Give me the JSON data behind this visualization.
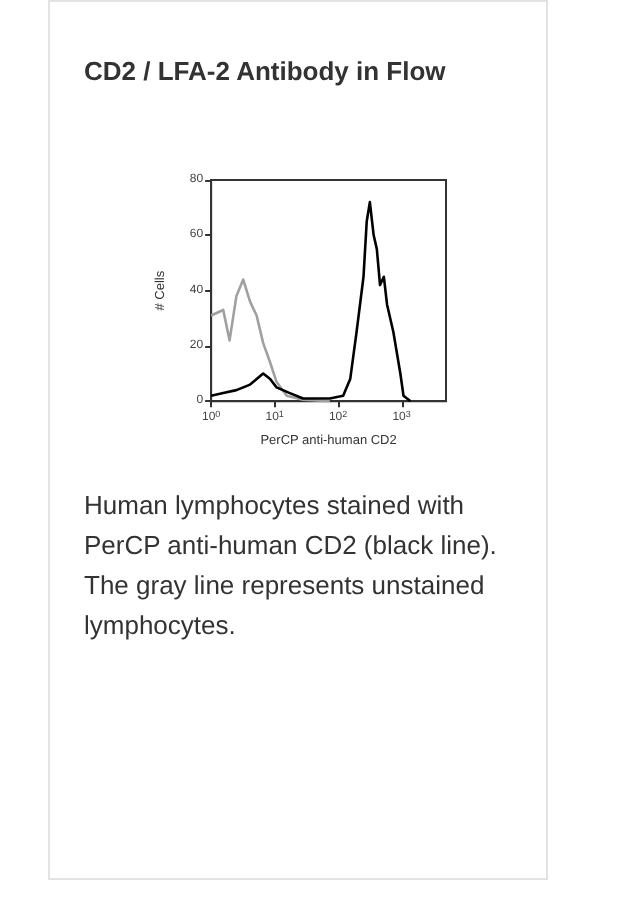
{
  "chart_data": {
    "type": "line",
    "title": "CD2 / LFA-2 Antibody in Flow",
    "xlabel": "PerCP anti-human CD2",
    "ylabel": "# Cells",
    "log": "x",
    "xlim": [
      1,
      5000
    ],
    "xticks": [
      {
        "value": 1,
        "label": "10$^{0}$"
      },
      {
        "value": 10,
        "label": "10$^{1}$"
      },
      {
        "value": 100,
        "label": "10$^{2}$"
      },
      {
        "value": 1000,
        "label": "10$^{3}$"
      }
    ],
    "ylim": [
      0,
      80
    ],
    "yticks": [
      0,
      20,
      40,
      60,
      80
    ],
    "series": [
      {
        "color": "#a0a0a0",
        "x": [
          1,
          1.55,
          1.95,
          2.5,
          3.2,
          4.1,
          5.2,
          6.6,
          8.5,
          10.7,
          15.5,
          28,
          74
        ],
        "values": [
          31,
          33,
          22,
          38,
          44,
          36,
          31,
          21,
          14,
          7,
          2,
          0.5,
          0
        ]
      },
      {
        "color": "#000000",
        "x": [
          1,
          1.55,
          2.5,
          4.1,
          6.6,
          8.5,
          10.7,
          17,
          28,
          74,
          120,
          155,
          195,
          251,
          282,
          316,
          363,
          407,
          457,
          525,
          589,
          741,
          955,
          1070,
          1380
        ],
        "values": [
          2,
          3,
          4,
          6,
          10,
          8,
          5,
          3,
          1,
          1,
          2,
          8,
          25,
          45,
          65,
          72,
          60,
          55,
          42,
          45,
          35,
          25,
          10,
          2,
          0
        ]
      }
    ],
    "annotations": [
      "Human lymphocytes stained with PerCP anti-human CD2 (black line). The gray line represents unstained lymphocytes."
    ]
  }
}
